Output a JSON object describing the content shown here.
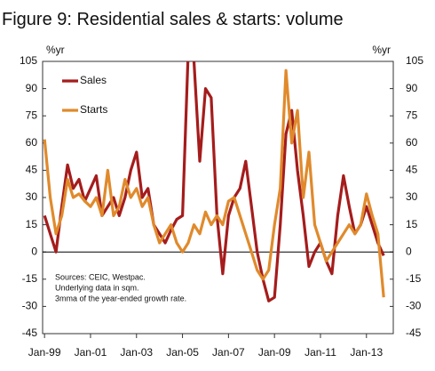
{
  "chart_data": {
    "type": "line",
    "title": "Figure 9: Residential sales & starts: volume",
    "ylabel": "%yr",
    "y2label": "%yr",
    "annotations": [
      "Sources: CEIC, Westpac.",
      "Underlying data in sqm.",
      "3mma of the year-ended growth rate."
    ],
    "x": [
      "1999-01",
      "1999-04",
      "1999-07",
      "1999-10",
      "2000-01",
      "2000-04",
      "2000-07",
      "2000-10",
      "2001-01",
      "2001-04",
      "2001-07",
      "2001-10",
      "2002-01",
      "2002-04",
      "2002-07",
      "2002-10",
      "2003-01",
      "2003-04",
      "2003-07",
      "2003-10",
      "2004-01",
      "2004-04",
      "2004-07",
      "2004-10",
      "2005-01",
      "2005-04",
      "2005-07",
      "2005-10",
      "2006-01",
      "2006-04",
      "2006-07",
      "2006-10",
      "2007-01",
      "2007-04",
      "2007-07",
      "2007-10",
      "2008-01",
      "2008-04",
      "2008-07",
      "2008-10",
      "2009-01",
      "2009-04",
      "2009-07",
      "2009-10",
      "2010-01",
      "2010-04",
      "2010-07",
      "2010-10",
      "2011-01",
      "2011-04",
      "2011-07",
      "2011-10",
      "2012-01",
      "2012-04",
      "2012-07",
      "2012-10",
      "2013-01",
      "2013-04",
      "2013-07",
      "2013-10"
    ],
    "series": [
      {
        "name": "Sales",
        "color": "#a51c1c",
        "values": [
          20,
          10,
          0,
          25,
          48,
          35,
          40,
          28,
          35,
          42,
          20,
          25,
          30,
          20,
          30,
          45,
          55,
          30,
          35,
          15,
          10,
          5,
          12,
          18,
          20,
          110,
          105,
          50,
          90,
          85,
          20,
          -12,
          20,
          30,
          35,
          50,
          25,
          0,
          -15,
          -27,
          -25,
          15,
          65,
          78,
          45,
          20,
          -8,
          0,
          5,
          -5,
          -12,
          20,
          42,
          25,
          10,
          15,
          25,
          15,
          5,
          -2
        ]
      },
      {
        "name": "Starts",
        "color": "#e08a2c",
        "values": [
          62,
          30,
          10,
          20,
          40,
          30,
          32,
          28,
          25,
          30,
          20,
          45,
          20,
          25,
          40,
          30,
          35,
          25,
          30,
          15,
          5,
          10,
          15,
          5,
          0,
          5,
          15,
          10,
          22,
          15,
          20,
          15,
          28,
          30,
          20,
          10,
          0,
          -10,
          -15,
          -10,
          15,
          35,
          100,
          60,
          78,
          30,
          55,
          15,
          5,
          -5,
          0,
          5,
          10,
          15,
          10,
          15,
          32,
          20,
          10,
          -25
        ]
      }
    ],
    "xlim": [
      "1998-12",
      "2014-03"
    ],
    "xticks": [
      {
        "value": "1999-01",
        "label": "Jan-99"
      },
      {
        "value": "2001-01",
        "label": "Jan-01"
      },
      {
        "value": "2003-01",
        "label": "Jan-03"
      },
      {
        "value": "2005-01",
        "label": "Jan-05"
      },
      {
        "value": "2007-01",
        "label": "Jan-07"
      },
      {
        "value": "2009-01",
        "label": "Jan-09"
      },
      {
        "value": "2011-01",
        "label": "Jan-11"
      },
      {
        "value": "2013-01",
        "label": "Jan-13"
      }
    ],
    "ylim": [
      -45,
      105
    ],
    "yticks": [
      105,
      90,
      75,
      60,
      45,
      30,
      15,
      0,
      -15,
      -30,
      -45
    ],
    "y2lim": [
      -45,
      105
    ],
    "y2ticks": [
      105,
      90,
      75,
      60,
      45,
      30,
      15,
      0,
      -15,
      -30,
      -45
    ],
    "zero_line": true,
    "legend": "upper left"
  }
}
